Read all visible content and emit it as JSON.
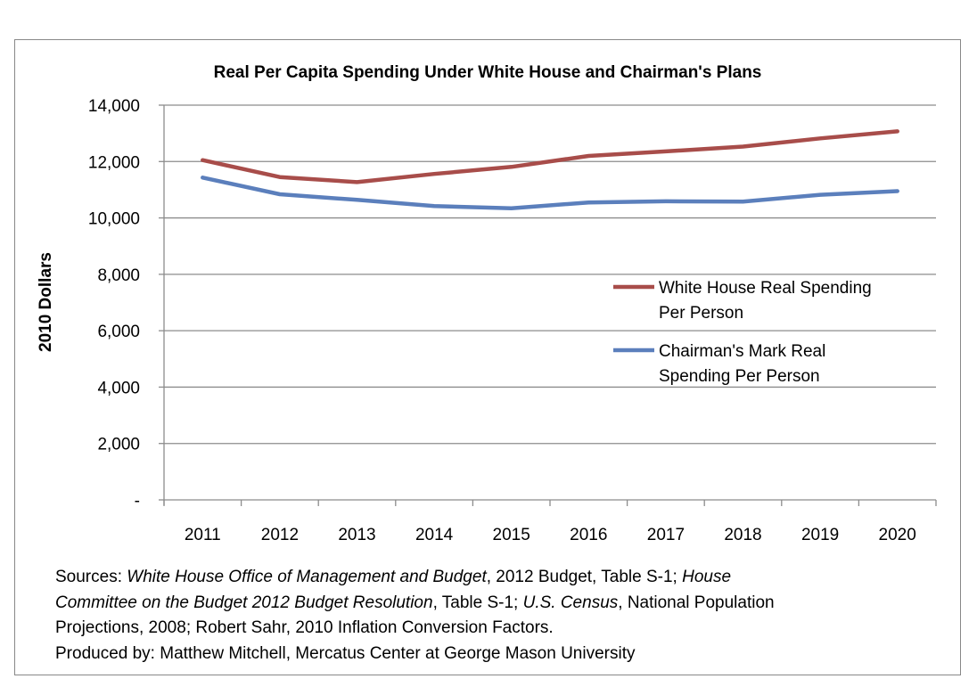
{
  "chart_data": {
    "type": "line",
    "title": "Real Per Capita Spending Under White House and Chairman's Plans",
    "ylabel": "2010 Dollars",
    "xlabel": "",
    "categories": [
      "2011",
      "2012",
      "2013",
      "2014",
      "2015",
      "2016",
      "2017",
      "2018",
      "2019",
      "2020"
    ],
    "ylim": [
      0,
      14000
    ],
    "yticks": [
      0,
      2000,
      4000,
      6000,
      8000,
      10000,
      12000,
      14000
    ],
    "ytick_labels": [
      "-",
      "2,000",
      "4,000",
      "6,000",
      "8,000",
      "10,000",
      "12,000",
      "14,000"
    ],
    "grid": true,
    "legend_position": "right",
    "series": [
      {
        "name": "White House Real Spending Per Person",
        "legend_lines": [
          "White House Real Spending",
          "Per Person"
        ],
        "color": "#a84d4a",
        "values": [
          12050,
          11450,
          11270,
          11560,
          11810,
          12200,
          12360,
          12530,
          12820,
          13070
        ]
      },
      {
        "name": "Chairman's Mark Real Spending Per Person",
        "legend_lines": [
          "Chairman's Mark Real",
          "Spending Per Person"
        ],
        "color": "#5b7fbc",
        "values": [
          11430,
          10840,
          10640,
          10420,
          10340,
          10550,
          10590,
          10580,
          10820,
          10950
        ]
      }
    ]
  },
  "sources": {
    "line1_a": "Sources: ",
    "line1_b": "White House Office of Management and Budget",
    "line1_c": ", 2012 Budget, Table S-1; ",
    "line1_d": "House",
    "line2_a": "Committee on the Budget 2012 Budget Resolution",
    "line2_b": ", Table S-1; ",
    "line2_c": "U.S. Census",
    "line2_d": ", National Population",
    "line3": "Projections, 2008; Robert Sahr, 2010 Inflation Conversion Factors.",
    "line4": "Produced by: Matthew Mitchell, Mercatus Center at George Mason University"
  }
}
